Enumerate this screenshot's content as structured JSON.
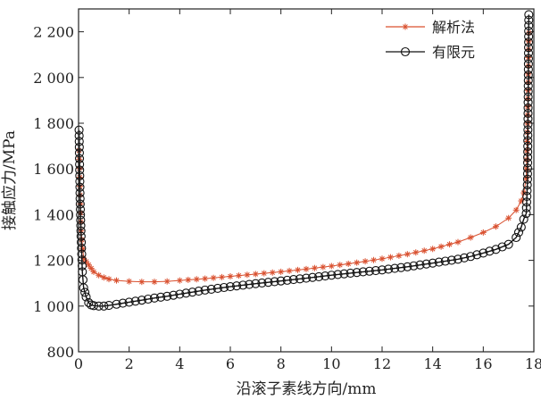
{
  "chart_data": {
    "type": "line",
    "title": "",
    "xlabel": "沿滚子素线方向/mm",
    "ylabel": "接触应力/MPa",
    "xlim": [
      0,
      18
    ],
    "ylim": [
      800,
      2300
    ],
    "x_ticks": [
      "0",
      "2",
      "4",
      "6",
      "8",
      "10",
      "12",
      "14",
      "16",
      "18"
    ],
    "y_ticks": [
      "800",
      "1 000",
      "1 200",
      "1 400",
      "1 600",
      "1 800",
      "2 000",
      "2 200"
    ],
    "x_tick_values": [
      0,
      2,
      4,
      6,
      8,
      10,
      12,
      14,
      16,
      18
    ],
    "y_tick_values": [
      800,
      1000,
      1200,
      1400,
      1600,
      1800,
      2000,
      2200
    ],
    "grid": false,
    "legend_position": "top-right",
    "series": [
      {
        "name": "解析法",
        "color": "#d9502f",
        "marker": "asterisk",
        "x": [
          0.02,
          0.1,
          0.2,
          0.3,
          0.4,
          0.5,
          0.6,
          0.8,
          1.0,
          1.2,
          1.5,
          2.0,
          2.5,
          3.0,
          3.5,
          4.0,
          5.0,
          6.0,
          7.0,
          8.0,
          9.0,
          10.0,
          11.0,
          12.0,
          13.0,
          14.0,
          15.0,
          15.5,
          16.0,
          16.5,
          17.0,
          17.3,
          17.5,
          17.6,
          17.7,
          17.75,
          17.8
        ],
        "y": [
          1680,
          1330,
          1210,
          1195,
          1180,
          1165,
          1150,
          1135,
          1125,
          1118,
          1112,
          1108,
          1106,
          1106,
          1108,
          1112,
          1120,
          1130,
          1140,
          1150,
          1162,
          1175,
          1190,
          1207,
          1227,
          1250,
          1280,
          1300,
          1322,
          1348,
          1385,
          1420,
          1460,
          1495,
          1560,
          1800,
          2195
        ]
      },
      {
        "name": "有限元",
        "color": "#111111",
        "marker": "circle",
        "x": [
          0.02,
          0.06,
          0.1,
          0.15,
          0.2,
          0.25,
          0.3,
          0.4,
          0.5,
          0.6,
          0.8,
          1.0,
          1.2,
          1.5,
          2.0,
          2.5,
          3.0,
          3.5,
          4.0,
          5.0,
          6.0,
          7.0,
          8.0,
          9.0,
          10.0,
          11.0,
          12.0,
          13.0,
          14.0,
          15.0,
          15.5,
          16.0,
          16.5,
          17.0,
          17.3,
          17.5,
          17.6,
          17.7,
          17.75,
          17.8
        ],
        "y": [
          1770,
          1470,
          1305,
          1150,
          1080,
          1060,
          1040,
          1015,
          1005,
          1002,
          1000,
          1000,
          1003,
          1008,
          1017,
          1026,
          1035,
          1043,
          1052,
          1070,
          1085,
          1098,
          1110,
          1122,
          1135,
          1147,
          1158,
          1172,
          1188,
          1205,
          1217,
          1232,
          1248,
          1270,
          1300,
          1345,
          1380,
          1405,
          1555,
          2275
        ]
      }
    ]
  }
}
